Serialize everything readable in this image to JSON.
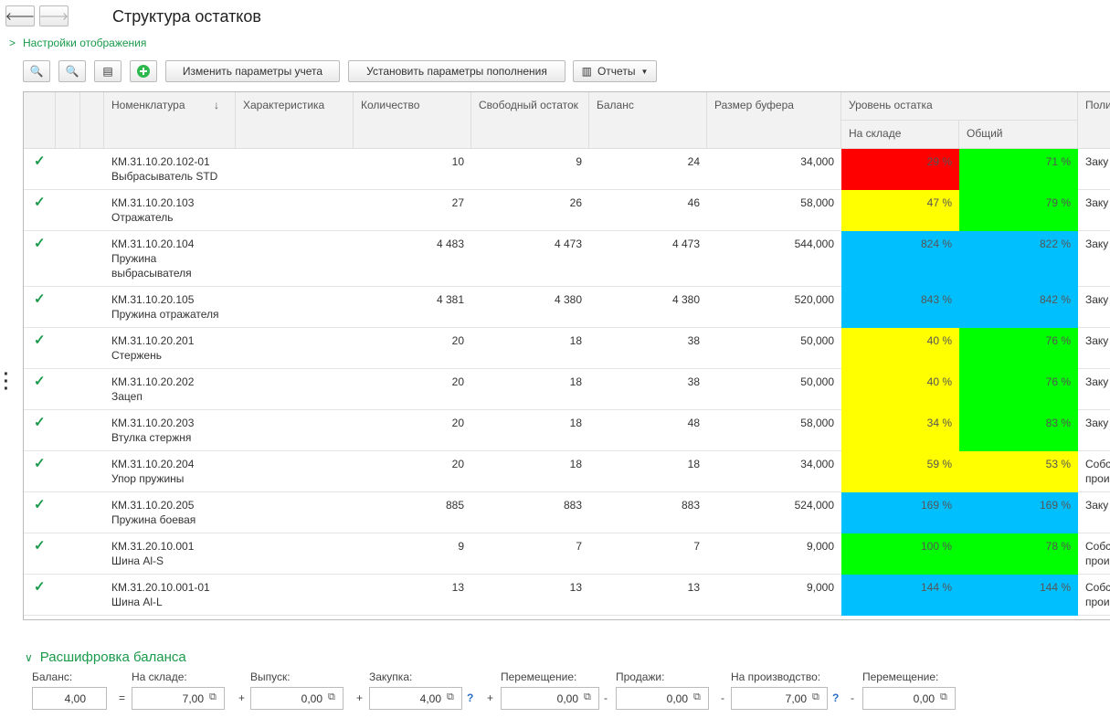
{
  "header": {
    "title": "Структура остатков",
    "settings_link": "Настройки отображения"
  },
  "toolbar": {
    "buttons": [
      "Изменить параметры учета",
      "Установить параметры пополнения"
    ],
    "reports": "Отчеты"
  },
  "table": {
    "columns": {
      "item": "Номенклатура",
      "characteristic": "Характеристика",
      "qty": "Количество",
      "free": "Свободный остаток",
      "balance": "Баланс",
      "buffer": "Размер буфера",
      "level": "Уровень остатка",
      "stock": "На складе",
      "total": "Общий",
      "policy": "Поли"
    },
    "rows": [
      {
        "code": "КМ.31.10.20.102-01",
        "name": "Выбрасыватель STD",
        "qty": "10",
        "free": "9",
        "balance": "24",
        "buffer": "34,000",
        "stock": {
          "text": "29 %",
          "color": "#ff0000"
        },
        "total": {
          "text": "71 %",
          "color": "#00ff00"
        },
        "policy": "Заку"
      },
      {
        "code": "КМ.31.10.20.103",
        "name": "Отражатель",
        "qty": "27",
        "free": "26",
        "balance": "46",
        "buffer": "58,000",
        "stock": {
          "text": "47 %",
          "color": "#ffff00"
        },
        "total": {
          "text": "79 %",
          "color": "#00ff00"
        },
        "policy": "Заку"
      },
      {
        "code": "КМ.31.10.20.104",
        "name": "Пружина выбрасывателя",
        "qty": "4 483",
        "free": "4 473",
        "balance": "4 473",
        "buffer": "544,000",
        "stock": {
          "text": "824 %",
          "color": "#00bfff"
        },
        "total": {
          "text": "822 %",
          "color": "#00bfff"
        },
        "policy": "Заку"
      },
      {
        "code": "КМ.31.10.20.105",
        "name": "Пружина отражателя",
        "qty": "4 381",
        "free": "4 380",
        "balance": "4 380",
        "buffer": "520,000",
        "stock": {
          "text": "843 %",
          "color": "#00bfff"
        },
        "total": {
          "text": "842 %",
          "color": "#00bfff"
        },
        "policy": "Заку"
      },
      {
        "code": "КМ.31.10.20.201",
        "name": "Стержень",
        "qty": "20",
        "free": "18",
        "balance": "38",
        "buffer": "50,000",
        "stock": {
          "text": "40 %",
          "color": "#ffff00"
        },
        "total": {
          "text": "76 %",
          "color": "#00ff00"
        },
        "policy": "Заку"
      },
      {
        "code": "КМ.31.10.20.202",
        "name": "Зацеп",
        "qty": "20",
        "free": "18",
        "balance": "38",
        "buffer": "50,000",
        "stock": {
          "text": "40 %",
          "color": "#ffff00"
        },
        "total": {
          "text": "76 %",
          "color": "#00ff00"
        },
        "policy": "Заку"
      },
      {
        "code": "КМ.31.10.20.203",
        "name": "Втулка стержня",
        "qty": "20",
        "free": "18",
        "balance": "48",
        "buffer": "58,000",
        "stock": {
          "text": "34 %",
          "color": "#ffff00"
        },
        "total": {
          "text": "83 %",
          "color": "#00ff00"
        },
        "policy": "Заку"
      },
      {
        "code": "КМ.31.10.20.204",
        "name": "Упор пружины",
        "qty": "20",
        "free": "18",
        "balance": "18",
        "buffer": "34,000",
        "stock": {
          "text": "59 %",
          "color": "#ffff00"
        },
        "total": {
          "text": "53 %",
          "color": "#ffff00"
        },
        "policy": "Собс прои"
      },
      {
        "code": "КМ.31.10.20.205",
        "name": "Пружина боевая",
        "qty": "885",
        "free": "883",
        "balance": "883",
        "buffer": "524,000",
        "stock": {
          "text": "169 %",
          "color": "#00bfff"
        },
        "total": {
          "text": "169 %",
          "color": "#00bfff"
        },
        "policy": "Заку"
      },
      {
        "code": "КМ.31.20.10.001",
        "name": "Шина Al-S",
        "qty": "9",
        "free": "7",
        "balance": "7",
        "buffer": "9,000",
        "stock": {
          "text": "100 %",
          "color": "#00ff00"
        },
        "total": {
          "text": "78 %",
          "color": "#00ff00"
        },
        "policy": "Собс прои"
      },
      {
        "code": "КМ.31.20.10.001-01",
        "name": "Шина Al-L",
        "qty": "13",
        "free": "13",
        "balance": "13",
        "buffer": "9,000",
        "stock": {
          "text": "144 %",
          "color": "#00bfff"
        },
        "total": {
          "text": "144 %",
          "color": "#00bfff"
        },
        "policy": "Собс прои"
      }
    ]
  },
  "balance": {
    "title": "Расшифровка баланса",
    "fields": [
      {
        "label": "Баланс:",
        "value": "4,00",
        "op": "="
      },
      {
        "label": "На складе:",
        "value": "7,00",
        "op": "+"
      },
      {
        "label": "Выпуск:",
        "value": "0,00",
        "op": "+"
      },
      {
        "label": "Закупка:",
        "value": "4,00",
        "help": "?",
        "op": "+"
      },
      {
        "label": "Перемещение:",
        "value": "0,00",
        "op": "-"
      },
      {
        "label": "Продажи:",
        "value": "0,00",
        "op": "-"
      },
      {
        "label": "На производство:",
        "value": "7,00",
        "help": "?",
        "op": "-"
      },
      {
        "label": "Перемещение:",
        "value": "0,00"
      }
    ]
  }
}
